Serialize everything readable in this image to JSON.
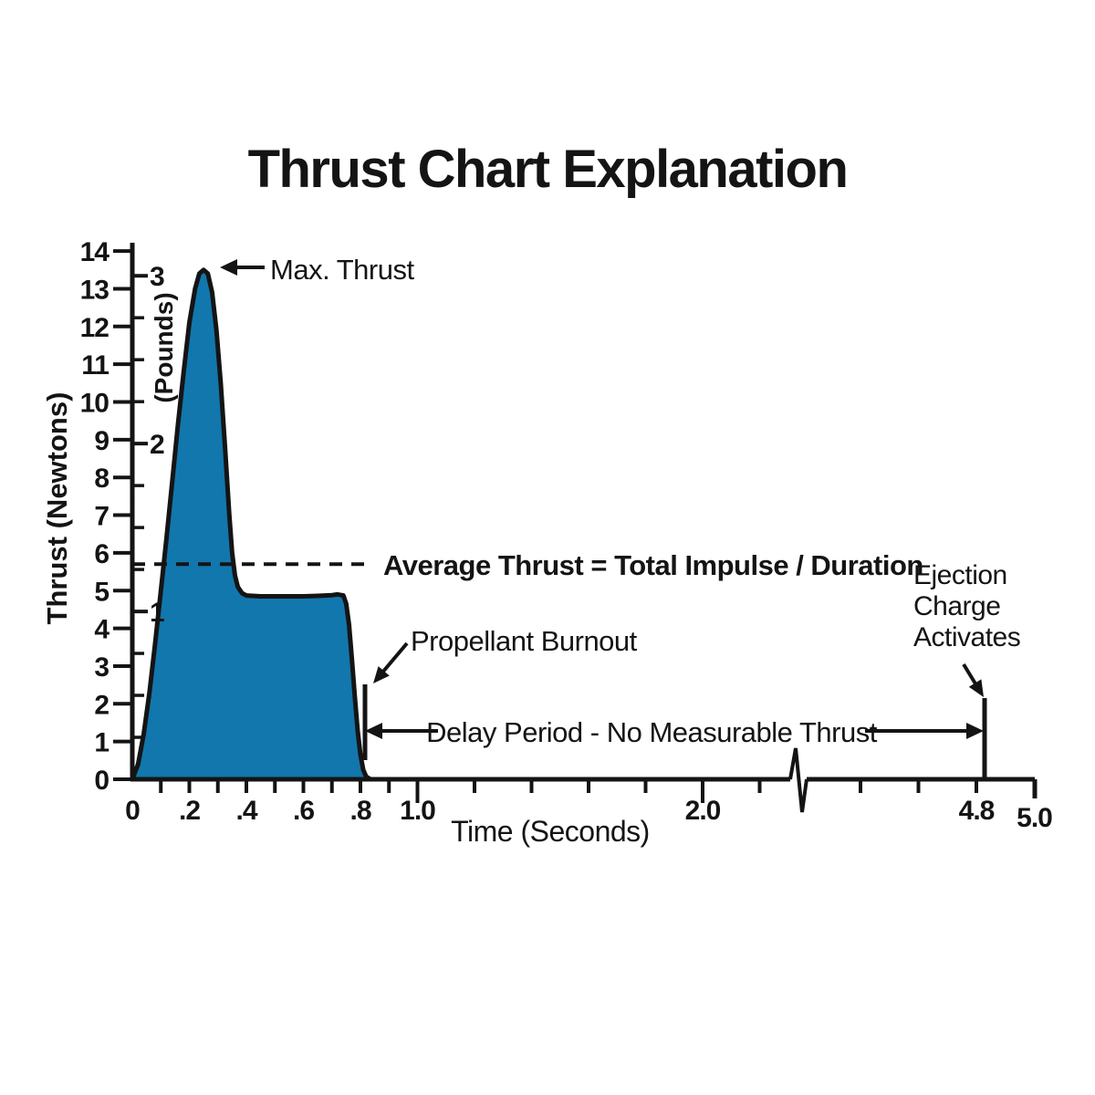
{
  "title": "Thrust Chart Explanation",
  "colors": {
    "curve_fill": "#1277ad",
    "ink": "#141414",
    "background": "#ffffff"
  },
  "chart_data": {
    "type": "area",
    "title": "Thrust Chart Explanation",
    "xlabel": "Time (Seconds)",
    "ylabel": "Thrust (Newtons)",
    "ylabel_secondary": "(Pounds)",
    "x_range": [
      0,
      5.0
    ],
    "y_range_newtons": [
      0,
      14
    ],
    "x_axis_break_between": [
      2.2,
      4.4
    ],
    "x_labeled_ticks": [
      {
        "value": 0,
        "label": "0",
        "long": false
      },
      {
        "value": 0.2,
        "label": ".2",
        "long": false
      },
      {
        "value": 0.4,
        "label": ".4",
        "long": false
      },
      {
        "value": 0.6,
        "label": ".6",
        "long": false
      },
      {
        "value": 0.8,
        "label": ".8",
        "long": false
      },
      {
        "value": 1.0,
        "label": "1.0",
        "long": true
      },
      {
        "value": 2.0,
        "label": "2.0",
        "long": true
      },
      {
        "value": 4.8,
        "label": "4.8",
        "long": false
      },
      {
        "value": 5.0,
        "label": "5.0",
        "long": true
      }
    ],
    "x_minor_ticks": [
      0.1,
      0.3,
      0.5,
      0.7,
      0.9,
      1.2,
      1.4,
      1.6,
      1.8,
      2.2,
      4.4,
      4.6
    ],
    "y_newtons_ticks": [
      0,
      1,
      2,
      3,
      4,
      5,
      6,
      7,
      8,
      9,
      10,
      11,
      12,
      13,
      14
    ],
    "y_pounds_major_ticks": [
      1,
      2,
      3
    ],
    "y_pounds_minor_step_lb": 0.25,
    "newtons_per_pound": 4.448,
    "average_thrust_newtons": 5.7,
    "max_thrust_newtons": 13.5,
    "peak_time_s": 0.25,
    "plateau_thrust_newtons": 4.85,
    "burnout_time_s": 0.82,
    "ejection_time_s": 4.83,
    "delay_period_s": [
      0.82,
      4.83
    ],
    "curve_points_t_N": [
      [
        0,
        0
      ],
      [
        0.02,
        0.4
      ],
      [
        0.04,
        1.2
      ],
      [
        0.06,
        2.3
      ],
      [
        0.08,
        3.6
      ],
      [
        0.1,
        5.0
      ],
      [
        0.12,
        6.4
      ],
      [
        0.14,
        7.9
      ],
      [
        0.16,
        9.4
      ],
      [
        0.18,
        10.8
      ],
      [
        0.2,
        12.1
      ],
      [
        0.22,
        13.0
      ],
      [
        0.235,
        13.4
      ],
      [
        0.25,
        13.5
      ],
      [
        0.265,
        13.4
      ],
      [
        0.28,
        12.9
      ],
      [
        0.295,
        11.9
      ],
      [
        0.31,
        10.5
      ],
      [
        0.325,
        8.8
      ],
      [
        0.34,
        7.0
      ],
      [
        0.35,
        6.0
      ],
      [
        0.36,
        5.4
      ],
      [
        0.37,
        5.1
      ],
      [
        0.385,
        4.93
      ],
      [
        0.4,
        4.87
      ],
      [
        0.45,
        4.85
      ],
      [
        0.5,
        4.85
      ],
      [
        0.55,
        4.85
      ],
      [
        0.6,
        4.85
      ],
      [
        0.65,
        4.86
      ],
      [
        0.7,
        4.88
      ],
      [
        0.72,
        4.9
      ],
      [
        0.74,
        4.87
      ],
      [
        0.75,
        4.65
      ],
      [
        0.76,
        4.1
      ],
      [
        0.77,
        3.2
      ],
      [
        0.78,
        2.2
      ],
      [
        0.79,
        1.3
      ],
      [
        0.8,
        0.65
      ],
      [
        0.81,
        0.25
      ],
      [
        0.82,
        0.07
      ],
      [
        0.835,
        0
      ]
    ]
  },
  "annotations": {
    "max_thrust": "Max. Thrust",
    "average_thrust": "Average Thrust = Total Impulse / Duration",
    "propellant_burnout": "Propellant Burnout",
    "delay_period": "Delay Period - No Measurable Thrust",
    "ejection_charge": "Ejection Charge Activates"
  }
}
